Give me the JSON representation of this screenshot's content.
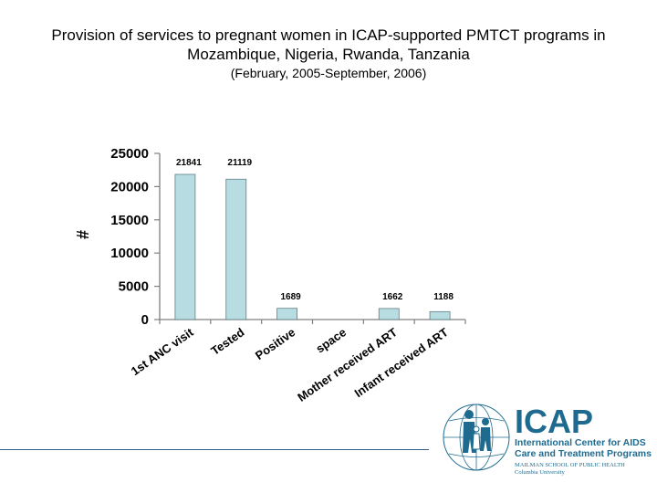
{
  "title": {
    "line1": "Provision of services to pregnant women in ICAP-supported PMTCT programs in",
    "line2": "Mozambique, Nigeria, Rwanda, Tanzania",
    "subtitle": "(February, 2005-September, 2006)"
  },
  "chart_data": {
    "type": "bar",
    "ylabel": "#",
    "xlabel": "",
    "ylim": [
      0,
      25000
    ],
    "yticks": [
      0,
      5000,
      10000,
      15000,
      20000,
      25000
    ],
    "categories": [
      "1st ANC visit",
      "Tested",
      "Positive",
      "space",
      "Mother received ART",
      "Infant received ART"
    ],
    "values": [
      21841,
      21119,
      1689,
      0,
      1662,
      1188
    ],
    "data_labels": [
      "21841",
      "21119",
      "1689",
      "",
      "1662",
      "1188"
    ],
    "bar_color": "#b7dde2",
    "grid": false
  },
  "logo": {
    "name": "ICAP",
    "line1": "International Center for AIDS",
    "line2": "Care and Treatment Programs",
    "line3": "MAILMAN SCHOOL OF PUBLIC HEALTH",
    "line4": "Columbia University",
    "color": "#1f6b8f"
  }
}
